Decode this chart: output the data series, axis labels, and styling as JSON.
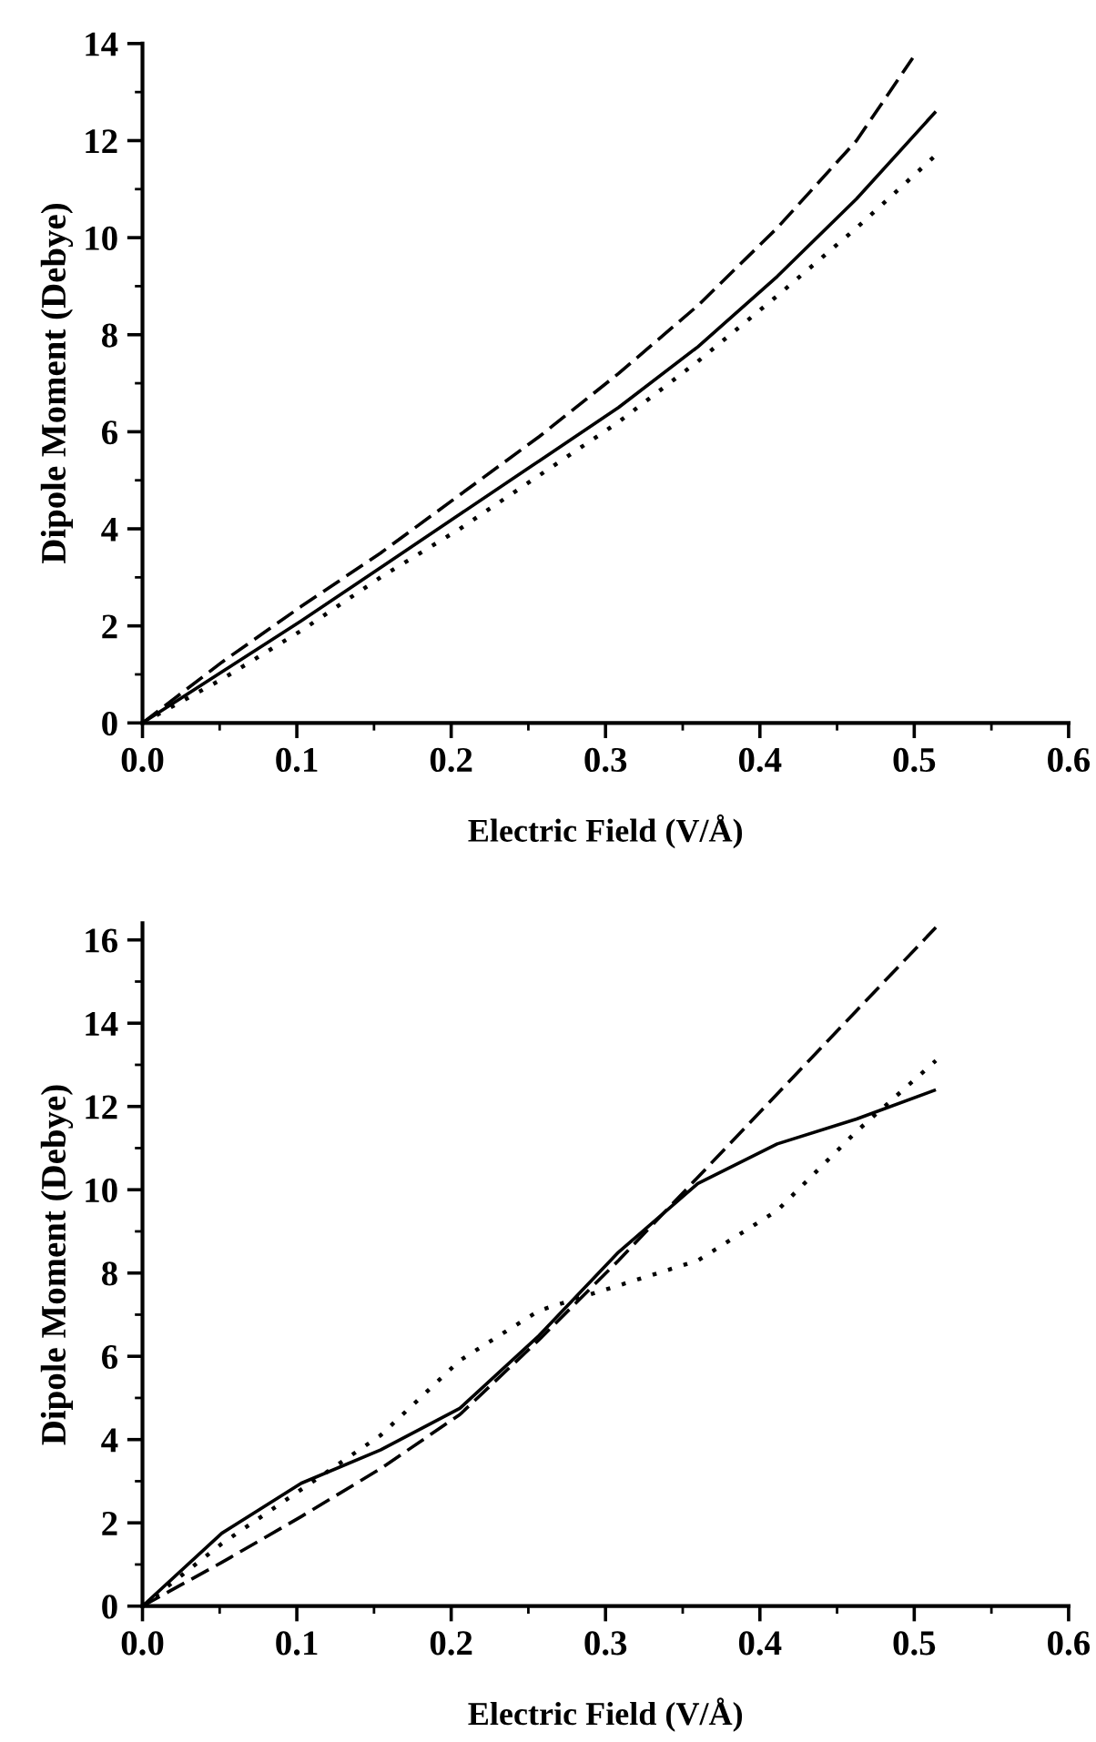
{
  "chart_data": [
    {
      "type": "line",
      "xlabel": "Electric Field (V/Å)",
      "ylabel": "Dipole Moment (Debye)",
      "xlim": [
        0,
        0.6
      ],
      "ylim": [
        0,
        14
      ],
      "xticks": [
        {
          "value": 0,
          "label": "0.0"
        },
        {
          "value": 0.05,
          "label": null
        },
        0.1,
        {
          "value": 0.15,
          "label": null
        },
        0.2,
        {
          "value": 0.25,
          "label": null
        },
        0.3,
        {
          "value": 0.35,
          "label": null
        },
        0.4,
        {
          "value": 0.45,
          "label": null
        },
        0.5,
        {
          "value": 0.55,
          "label": null
        },
        0.6
      ],
      "yticks": [
        0,
        {
          "value": 1,
          "label": null
        },
        2,
        {
          "value": 3,
          "label": null
        },
        4,
        {
          "value": 5,
          "label": null
        },
        6,
        {
          "value": 7,
          "label": null
        },
        8,
        {
          "value": 9,
          "label": null
        },
        10,
        {
          "value": 11,
          "label": null
        },
        12,
        {
          "value": 13,
          "label": null
        },
        14
      ],
      "series": [
        {
          "color": "#000000",
          "line_style": "solid",
          "x": [
            0,
            0.0514,
            0.1028,
            0.1542,
            0.2056,
            0.257,
            0.3084,
            0.3598,
            0.4112,
            0.4626,
            0.514
          ],
          "values": [
            0,
            1.05,
            2.1,
            3.2,
            4.3,
            5.4,
            6.5,
            7.75,
            9.2,
            10.8,
            12.6
          ]
        },
        {
          "color": "#000000",
          "line_style": "dashed",
          "x": [
            0,
            0.0514,
            0.1028,
            0.1542,
            0.2056,
            0.257,
            0.3084,
            0.3598,
            0.4112,
            0.4626,
            0.499
          ],
          "values": [
            0,
            1.25,
            2.4,
            3.5,
            4.7,
            5.9,
            7.2,
            8.6,
            10.2,
            12.0,
            13.7
          ]
        },
        {
          "color": "#000000",
          "line_style": "dotted",
          "x": [
            0,
            0.0514,
            0.1028,
            0.1542,
            0.2056,
            0.257,
            0.3084,
            0.3598,
            0.4112,
            0.4626,
            0.514
          ],
          "values": [
            0,
            0.9,
            1.9,
            3.0,
            4.0,
            5.1,
            6.2,
            7.45,
            8.8,
            10.2,
            11.7
          ]
        }
      ]
    },
    {
      "type": "line",
      "xlabel": "Electric Field (V/Å)",
      "ylabel": "Dipole Moment (Debye)",
      "xlim": [
        0,
        0.6
      ],
      "ylim": [
        0,
        16.4
      ],
      "xticks": [
        {
          "value": 0,
          "label": "0.0"
        },
        {
          "value": 0.05,
          "label": null
        },
        0.1,
        {
          "value": 0.15,
          "label": null
        },
        0.2,
        {
          "value": 0.25,
          "label": null
        },
        0.3,
        {
          "value": 0.35,
          "label": null
        },
        0.4,
        {
          "value": 0.45,
          "label": null
        },
        0.5,
        {
          "value": 0.55,
          "label": null
        },
        0.6
      ],
      "yticks": [
        0,
        {
          "value": 1,
          "label": null
        },
        2,
        {
          "value": 3,
          "label": null
        },
        4,
        {
          "value": 5,
          "label": null
        },
        6,
        {
          "value": 7,
          "label": null
        },
        8,
        {
          "value": 9,
          "label": null
        },
        10,
        {
          "value": 11,
          "label": null
        },
        12,
        {
          "value": 13,
          "label": null
        },
        14,
        {
          "value": 15,
          "label": null
        },
        16
      ],
      "series": [
        {
          "color": "#000000",
          "line_style": "solid",
          "x": [
            0,
            0.0514,
            0.1028,
            0.1542,
            0.2056,
            0.257,
            0.3084,
            0.3598,
            0.4112,
            0.4626,
            0.514
          ],
          "values": [
            0,
            1.75,
            2.95,
            3.75,
            4.75,
            6.5,
            8.5,
            10.15,
            11.1,
            11.7,
            12.4
          ]
        },
        {
          "color": "#000000",
          "line_style": "dashed",
          "x": [
            0,
            0.0514,
            0.1028,
            0.1542,
            0.2056,
            0.257,
            0.3084,
            0.3598,
            0.4112,
            0.4626,
            0.514
          ],
          "values": [
            0,
            1.05,
            2.15,
            3.3,
            4.6,
            6.4,
            8.3,
            10.3,
            12.3,
            14.3,
            16.3
          ]
        },
        {
          "color": "#000000",
          "line_style": "dotted",
          "x": [
            0,
            0.0514,
            0.1028,
            0.1542,
            0.2056,
            0.257,
            0.3084,
            0.3598,
            0.4112,
            0.4626,
            0.514
          ],
          "values": [
            0,
            1.5,
            2.8,
            4.1,
            5.9,
            7.1,
            7.7,
            8.3,
            9.5,
            11.4,
            13.1
          ]
        }
      ]
    }
  ]
}
